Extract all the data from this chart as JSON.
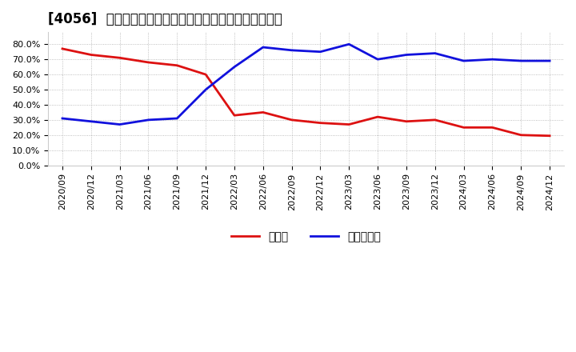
{
  "title": "[4056]  現頲金、有利子負債の総資産に対する比率の推移",
  "ylim": [
    0.0,
    0.88
  ],
  "yticks": [
    0.0,
    0.1,
    0.2,
    0.3,
    0.4,
    0.5,
    0.6,
    0.7,
    0.8
  ],
  "dates": [
    "2020/09",
    "2020/12",
    "2021/03",
    "2021/06",
    "2021/09",
    "2021/12",
    "2022/03",
    "2022/06",
    "2022/09",
    "2022/12",
    "2023/03",
    "2023/06",
    "2023/09",
    "2023/12",
    "2024/03",
    "2024/06",
    "2024/09",
    "2024/12"
  ],
  "cash": [
    0.77,
    0.73,
    0.71,
    0.68,
    0.66,
    0.6,
    0.33,
    0.35,
    0.3,
    0.28,
    0.27,
    0.32,
    0.29,
    0.3,
    0.25,
    0.25,
    0.2,
    0.195
  ],
  "debt": [
    0.31,
    0.29,
    0.27,
    0.3,
    0.31,
    0.5,
    0.65,
    0.78,
    0.76,
    0.75,
    0.8,
    0.7,
    0.73,
    0.74,
    0.69,
    0.7,
    0.69,
    0.69
  ],
  "cash_color": "#dd1111",
  "debt_color": "#1111dd",
  "line_width": 2.0,
  "background_color": "#ffffff",
  "grid_color": "#999999",
  "legend_cash": "現頲金",
  "legend_debt": "有利子負債",
  "title_fontsize": 12,
  "tick_fontsize": 8,
  "legend_fontsize": 10
}
